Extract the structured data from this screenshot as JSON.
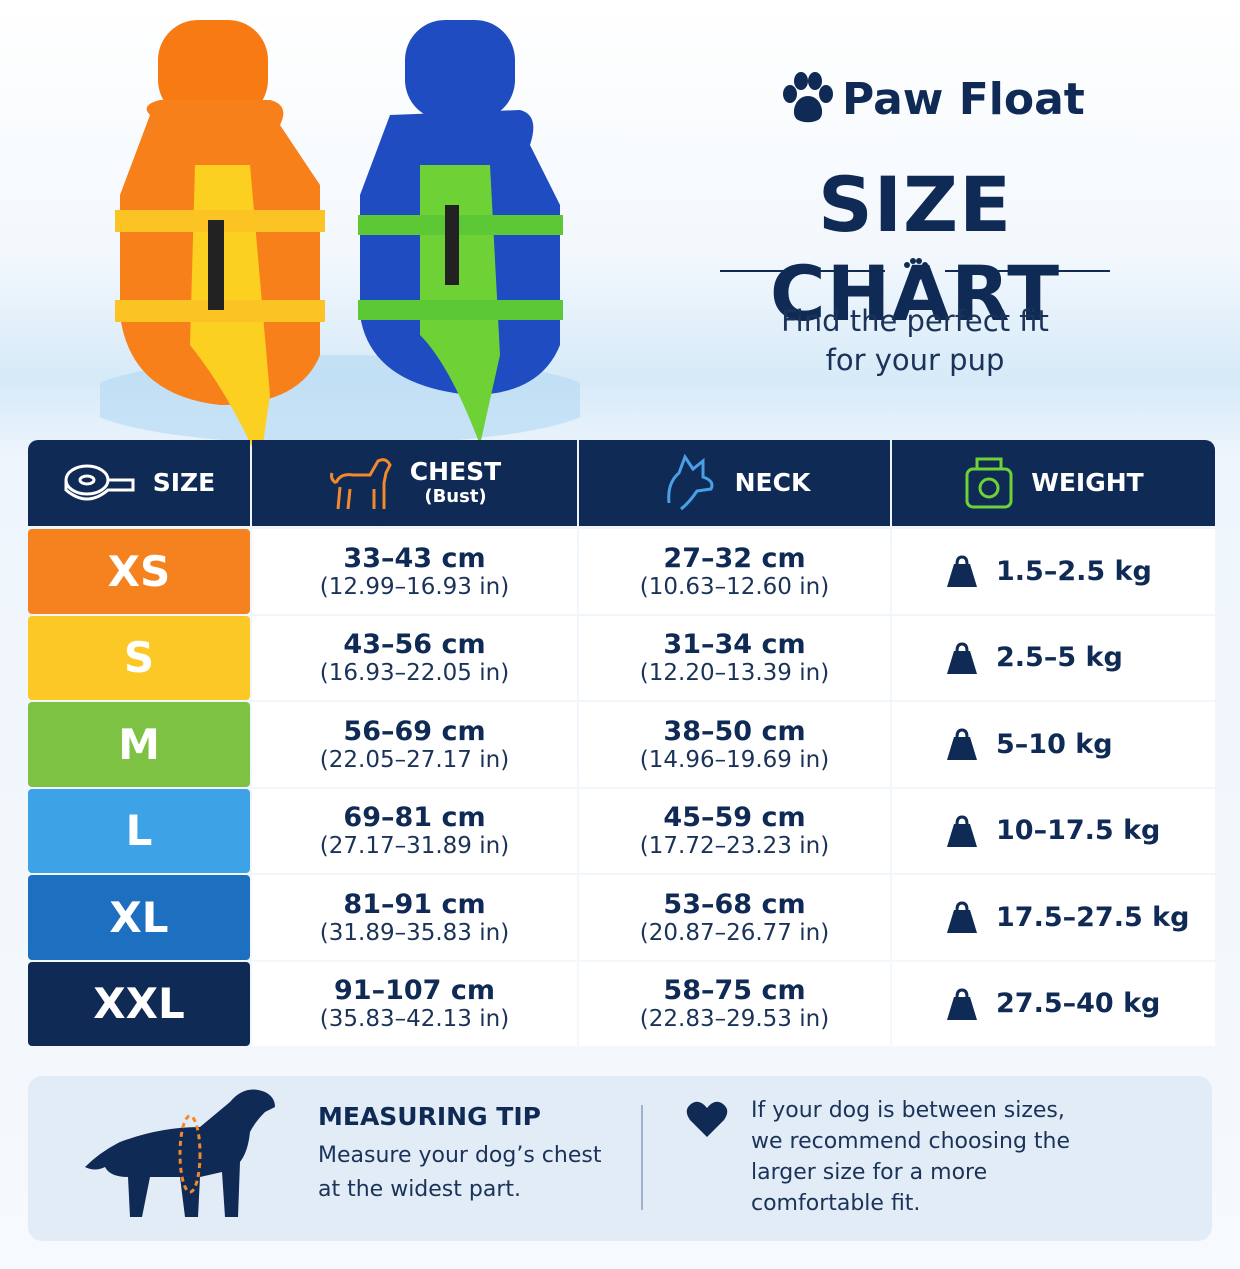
{
  "brand": "Paw Float",
  "title": "SIZE CHART",
  "subtitle": [
    "Find the perfect fit",
    "for your pup"
  ],
  "table": {
    "headers": [
      {
        "label": "SIZE"
      },
      {
        "label": "CHEST",
        "sublabel": "(Bust)"
      },
      {
        "label": "NECK"
      },
      {
        "label": "WEIGHT"
      }
    ],
    "rows": [
      {
        "size": "XS",
        "chest_cm": "33–43 cm",
        "chest_in": "(12.99–16.93 in)",
        "neck_cm": "27–32 cm",
        "neck_in": "(10.63–12.60 in)",
        "weight": "1.5–2.5 kg"
      },
      {
        "size": "S",
        "chest_cm": "43–56 cm",
        "chest_in": "(16.93–22.05 in)",
        "neck_cm": "31–34 cm",
        "neck_in": "(12.20–13.39 in)",
        "weight": "2.5–5 kg"
      },
      {
        "size": "M",
        "chest_cm": "56–69 cm",
        "chest_in": "(22.05–27.17 in)",
        "neck_cm": "38–50 cm",
        "neck_in": "(14.96–19.69 in)",
        "weight": "5–10 kg"
      },
      {
        "size": "L",
        "chest_cm": "69–81 cm",
        "chest_in": "(27.17–31.89 in)",
        "neck_cm": "45–59 cm",
        "neck_in": "(17.72–23.23 in)",
        "weight": "10–17.5 kg"
      },
      {
        "size": "XL",
        "chest_cm": "81–91 cm",
        "chest_in": "(31.89–35.83 in)",
        "neck_cm": "53–68 cm",
        "neck_in": "(20.87–26.77 in)",
        "weight": "17.5–27.5 kg"
      },
      {
        "size": "XXL",
        "chest_cm": "91–107 cm",
        "chest_in": "(35.83–42.13 in)",
        "neck_cm": "58–75 cm",
        "neck_in": "(22.83–29.53 in)",
        "weight": "27.5–40 kg"
      }
    ]
  },
  "tip": {
    "title": "MEASURING TIP",
    "text": [
      "Measure your dog’s chest",
      "at the widest part."
    ],
    "note": [
      "If your dog is between sizes,",
      "we recommend choosing the",
      "larger size for a more",
      "comfortable fit."
    ]
  }
}
